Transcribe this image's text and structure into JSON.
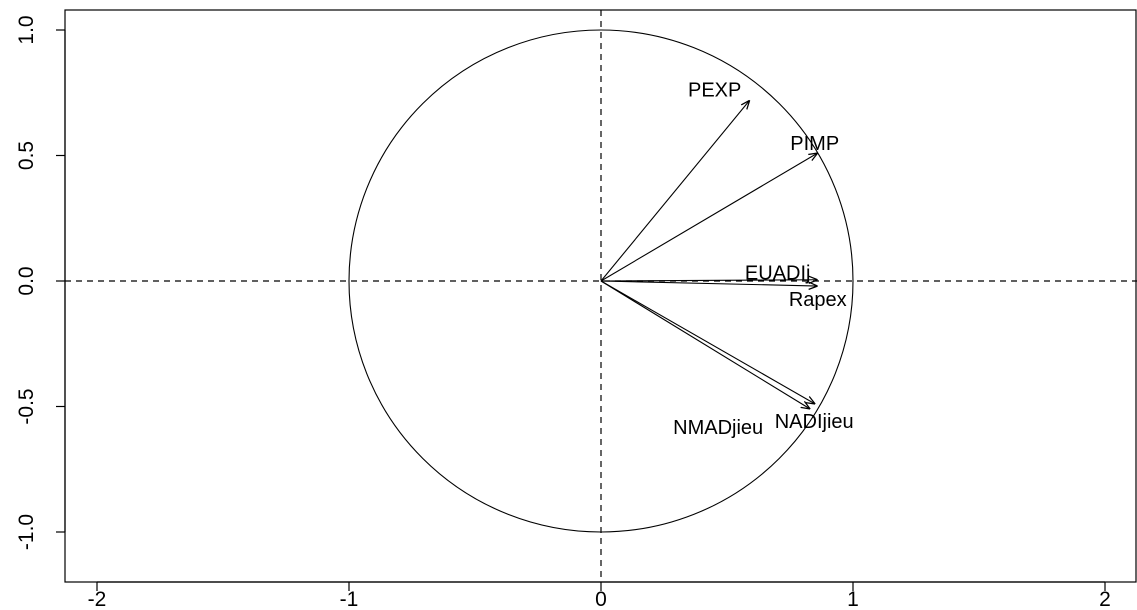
{
  "chart_data": {
    "type": "scatter",
    "subtype": "correlation-circle",
    "title": "",
    "xlabel": "",
    "ylabel": "",
    "xlim": [
      -2.15,
      2.15
    ],
    "ylim": [
      -1.1,
      1.05
    ],
    "xticks": [
      -2,
      -1,
      0,
      1,
      2
    ],
    "xtick_labels": [
      "-2",
      "-1",
      "0",
      "1",
      "2"
    ],
    "yticks": [
      -1.0,
      -0.5,
      0.0,
      0.5,
      1.0
    ],
    "ytick_labels": [
      "-1.0",
      "-0.5",
      "0.0",
      "0.5",
      "1.0"
    ],
    "unit_circle_radius": 1,
    "reference_lines": {
      "x": 0,
      "y": 0,
      "style": "dashed"
    },
    "grid": false,
    "vectors": [
      {
        "label": "PEXP",
        "x": 0.59,
        "y": 0.72
      },
      {
        "label": "PIMP",
        "x": 0.86,
        "y": 0.51
      },
      {
        "label": "EUADIj",
        "x": 0.86,
        "y": 0.005
      },
      {
        "label": "Rapex",
        "x": 0.86,
        "y": -0.02
      },
      {
        "label": "NADIjieu",
        "x": 0.85,
        "y": -0.49
      },
      {
        "label": "NMADjieu",
        "x": 0.83,
        "y": -0.51
      }
    ]
  }
}
